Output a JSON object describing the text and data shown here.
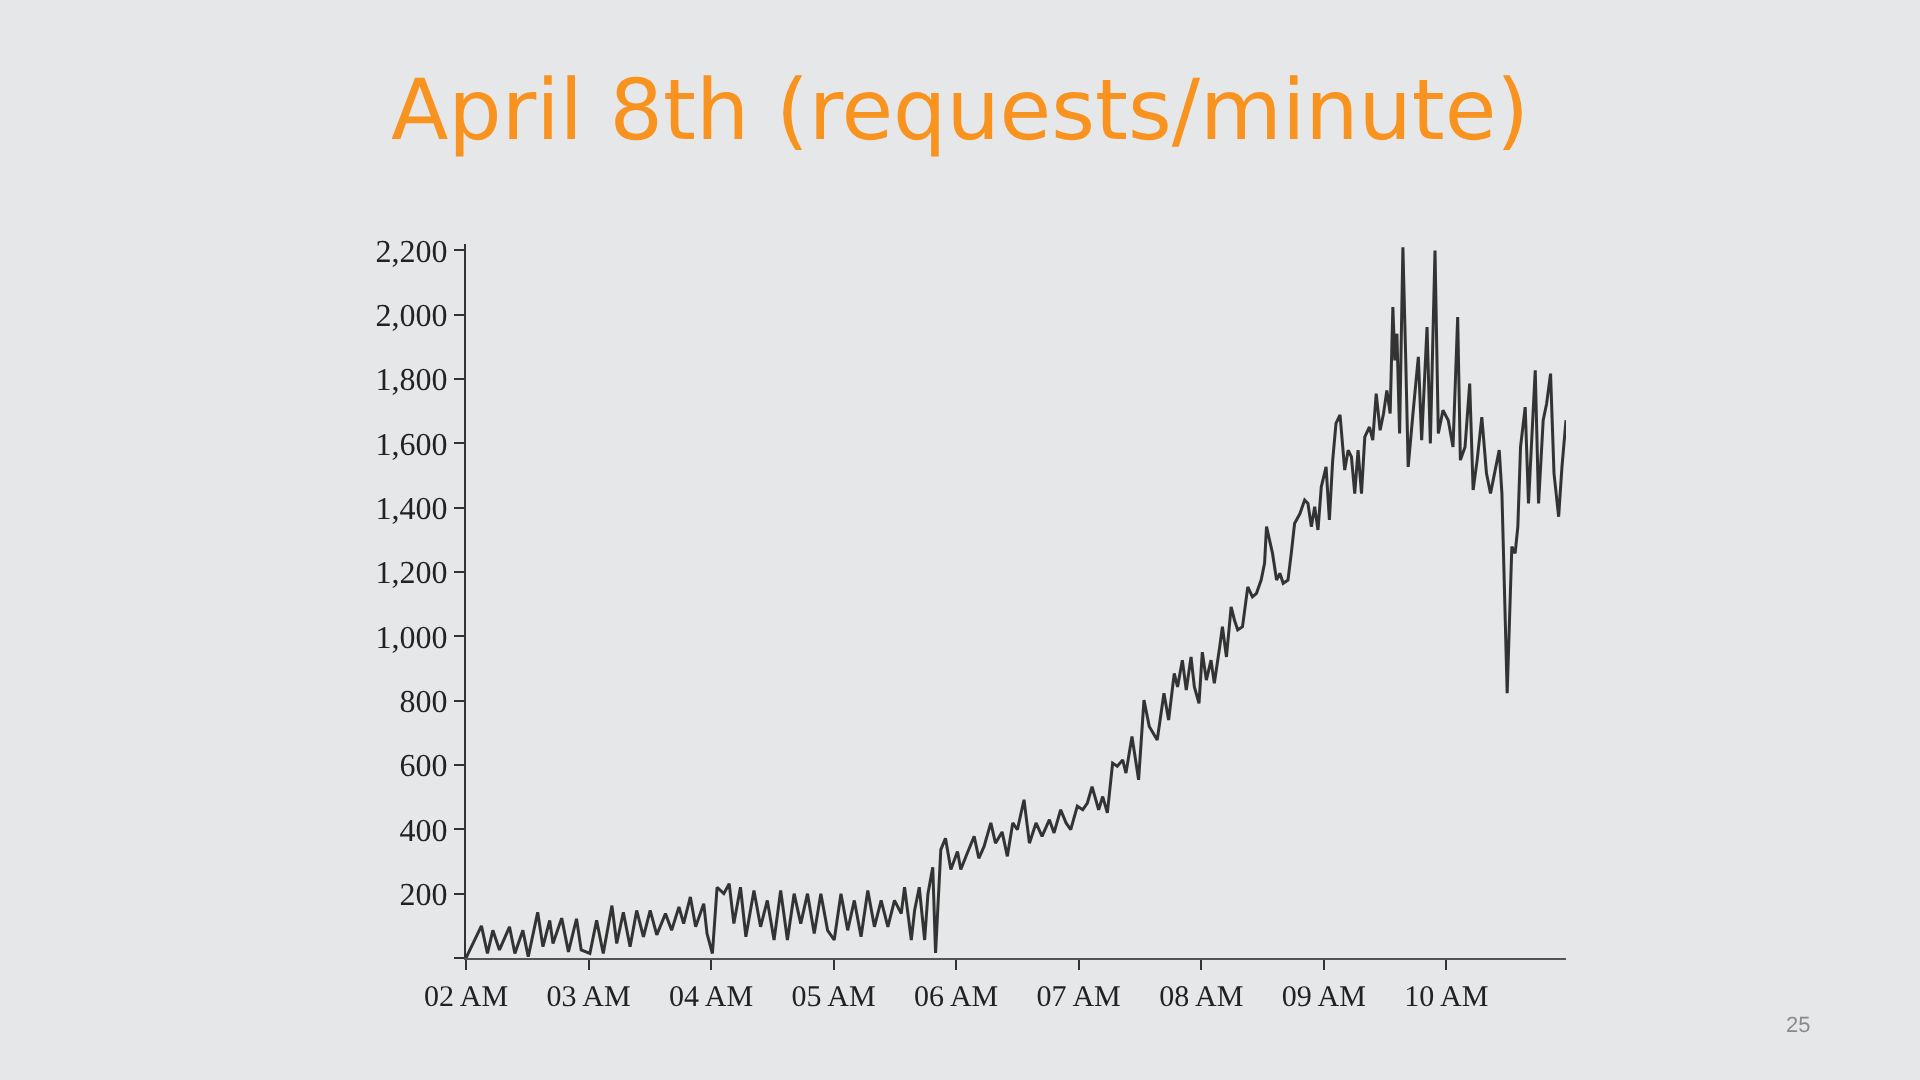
{
  "chart_data": {
    "type": "line",
    "title": "April 8th (requests/minute)",
    "annotations": [
      "25"
    ],
    "xlim": [
      2,
      10.977
    ],
    "xticks": [
      {
        "value": 2,
        "label": "02 AM"
      },
      {
        "value": 3,
        "label": "03 AM"
      },
      {
        "value": 4,
        "label": "04 AM"
      },
      {
        "value": 5,
        "label": "05 AM"
      },
      {
        "value": 6,
        "label": "06 AM"
      },
      {
        "value": 7,
        "label": "07 AM"
      },
      {
        "value": 8,
        "label": "08 AM"
      },
      {
        "value": 9,
        "label": "09 AM"
      },
      {
        "value": 10,
        "label": "10 AM"
      }
    ],
    "ylim": [
      0,
      2220
    ],
    "yticks": [
      {
        "value": 0,
        "label": null
      },
      200,
      400,
      600,
      800,
      {
        "value": 1000,
        "label": "1,000"
      },
      {
        "value": 1200,
        "label": "1,200"
      },
      {
        "value": 1400,
        "label": "1,400"
      },
      {
        "value": 1600,
        "label": "1,600"
      },
      {
        "value": 1800,
        "label": "1,800"
      },
      {
        "value": 2000,
        "label": "2,000"
      },
      {
        "value": 2200,
        "label": "2,200"
      }
    ],
    "line_style": "solid",
    "series": [
      {
        "color": "#333333",
        "x": [
          2.0,
          2.126,
          2.175,
          2.219,
          2.273,
          2.355,
          2.399,
          2.464,
          2.508,
          2.585,
          2.628,
          2.683,
          2.71,
          2.781,
          2.836,
          2.902,
          2.94,
          3.011,
          3.066,
          3.12,
          3.191,
          3.23,
          3.284,
          3.339,
          3.393,
          3.448,
          3.503,
          3.557,
          3.628,
          3.678,
          3.738,
          3.776,
          3.831,
          3.874,
          3.94,
          3.967,
          4.011,
          4.049,
          4.104,
          4.148,
          4.186,
          4.24,
          4.284,
          4.35,
          4.404,
          4.459,
          4.514,
          4.568,
          4.623,
          4.678,
          4.732,
          4.787,
          4.842,
          4.896,
          4.951,
          5.005,
          5.06,
          5.115,
          5.169,
          5.224,
          5.279,
          5.333,
          5.388,
          5.443,
          5.497,
          5.552,
          5.579,
          5.634,
          5.661,
          5.699,
          5.743,
          5.77,
          5.809,
          5.832,
          5.875,
          5.913,
          5.957,
          6.011,
          6.038,
          6.092,
          6.147,
          6.185,
          6.228,
          6.283,
          6.321,
          6.375,
          6.418,
          6.462,
          6.5,
          6.554,
          6.598,
          6.652,
          6.701,
          6.761,
          6.799,
          6.853,
          6.897,
          6.935,
          6.989,
          7.033,
          7.071,
          7.109,
          7.163,
          7.196,
          7.234,
          7.277,
          7.315,
          7.359,
          7.386,
          7.435,
          7.489,
          7.533,
          7.576,
          7.641,
          7.696,
          7.734,
          7.78,
          7.807,
          7.846,
          7.878,
          7.917,
          7.944,
          7.982,
          8.009,
          8.042,
          8.08,
          8.107,
          8.151,
          8.173,
          8.206,
          8.244,
          8.271,
          8.298,
          8.337,
          8.38,
          8.418,
          8.451,
          8.489,
          8.517,
          8.533,
          8.582,
          8.615,
          8.642,
          8.669,
          8.708,
          8.735,
          8.762,
          8.806,
          8.844,
          8.871,
          8.899,
          8.926,
          8.953,
          8.98,
          9.019,
          9.046,
          9.073,
          9.1,
          9.133,
          9.171,
          9.199,
          9.226,
          9.253,
          9.28,
          9.308,
          9.335,
          9.373,
          9.4,
          9.428,
          9.46,
          9.488,
          9.515,
          9.542,
          9.564,
          9.58,
          9.597,
          9.619,
          9.646,
          9.668,
          9.689,
          9.728,
          9.772,
          9.799,
          9.843,
          9.87,
          9.908,
          9.935,
          9.973,
          10.016,
          10.055,
          10.093,
          10.115,
          10.153,
          10.191,
          10.219,
          10.252,
          10.29,
          10.328,
          10.361,
          10.399,
          10.432,
          10.454,
          10.497,
          10.535,
          10.562,
          10.584,
          10.606,
          10.644,
          10.671,
          10.726,
          10.753,
          10.791,
          10.819,
          10.851,
          10.879,
          10.917,
          10.944,
          10.977
        ],
        "values": [
          0,
          100,
          14,
          86,
          25,
          97,
          14,
          86,
          4,
          142,
          35,
          117,
          45,
          124,
          19,
          122,
          25,
          14,
          117,
          14,
          163,
          45,
          142,
          35,
          148,
          66,
          148,
          72,
          138,
          86,
          159,
          107,
          190,
          97,
          169,
          76,
          14,
          220,
          200,
          231,
          107,
          220,
          66,
          210,
          97,
          179,
          56,
          210,
          56,
          200,
          107,
          200,
          76,
          200,
          86,
          56,
          200,
          86,
          179,
          66,
          210,
          97,
          179,
          97,
          179,
          138,
          220,
          56,
          148,
          220,
          56,
          200,
          282,
          16,
          337,
          372,
          275,
          331,
          275,
          327,
          378,
          310,
          347,
          420,
          357,
          392,
          316,
          420,
          399,
          492,
          357,
          420,
          378,
          430,
          389,
          461,
          420,
          399,
          472,
          461,
          482,
          533,
          461,
          502,
          451,
          606,
          596,
          616,
          575,
          689,
          554,
          802,
          720,
          678,
          823,
          740,
          885,
          843,
          926,
          833,
          936,
          843,
          792,
          951,
          864,
          926,
          854,
          968,
          1030,
          936,
          1092,
          1051,
          1020,
          1030,
          1154,
          1123,
          1134,
          1175,
          1227,
          1341,
          1258,
          1175,
          1196,
          1165,
          1175,
          1258,
          1351,
          1382,
          1424,
          1413,
          1341,
          1403,
          1331,
          1465,
          1527,
          1362,
          1548,
          1662,
          1689,
          1517,
          1579,
          1558,
          1444,
          1579,
          1444,
          1620,
          1651,
          1610,
          1755,
          1641,
          1693,
          1765,
          1693,
          2024,
          1858,
          1941,
          1631,
          2210,
          1879,
          1527,
          1693,
          1869,
          1610,
          1962,
          1600,
          2200,
          1631,
          1703,
          1672,
          1589,
          1993,
          1548,
          1589,
          1786,
          1455,
          1548,
          1682,
          1507,
          1444,
          1517,
          1579,
          1444,
          823,
          1279,
          1258,
          1341,
          1589,
          1713,
          1413,
          1827,
          1413,
          1672,
          1724,
          1817,
          1507,
          1372,
          1527,
          1672
        ]
      }
    ]
  }
}
